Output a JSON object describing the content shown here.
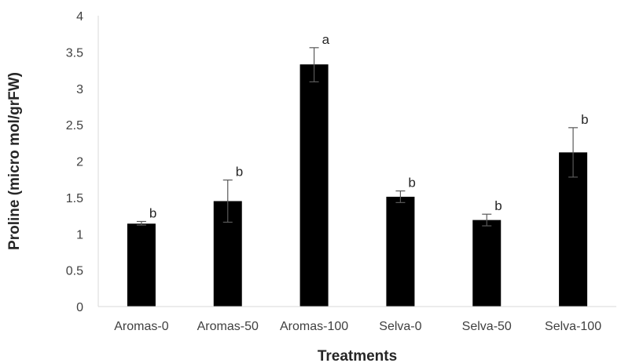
{
  "chart_data": {
    "type": "bar",
    "title": "",
    "xlabel": "Treatments",
    "ylabel": "Proline (micro mol/grFW)",
    "ylim": [
      0,
      4
    ],
    "yticks": [
      0,
      0.5,
      1,
      1.5,
      2,
      2.5,
      3,
      3.5,
      4
    ],
    "ytick_labels": [
      "0",
      "0.5",
      "1",
      "1.5",
      "2",
      "2.5",
      "3",
      "3.5",
      "4"
    ],
    "grid": false,
    "legend": "none",
    "bar_color": "#000000",
    "categories": [
      "Aromas-0",
      "Aromas-50",
      "Aromas-100",
      "Selva-0",
      "Selva-50",
      "Selva-100"
    ],
    "values": [
      1.14,
      1.45,
      3.33,
      1.51,
      1.19,
      2.12
    ],
    "error_low": [
      1.12,
      1.16,
      3.09,
      1.43,
      1.11,
      1.78
    ],
    "error_high": [
      1.17,
      1.74,
      3.56,
      1.59,
      1.27,
      2.46
    ],
    "significance": [
      "b",
      "b",
      "a",
      "b",
      "b",
      "b"
    ]
  }
}
